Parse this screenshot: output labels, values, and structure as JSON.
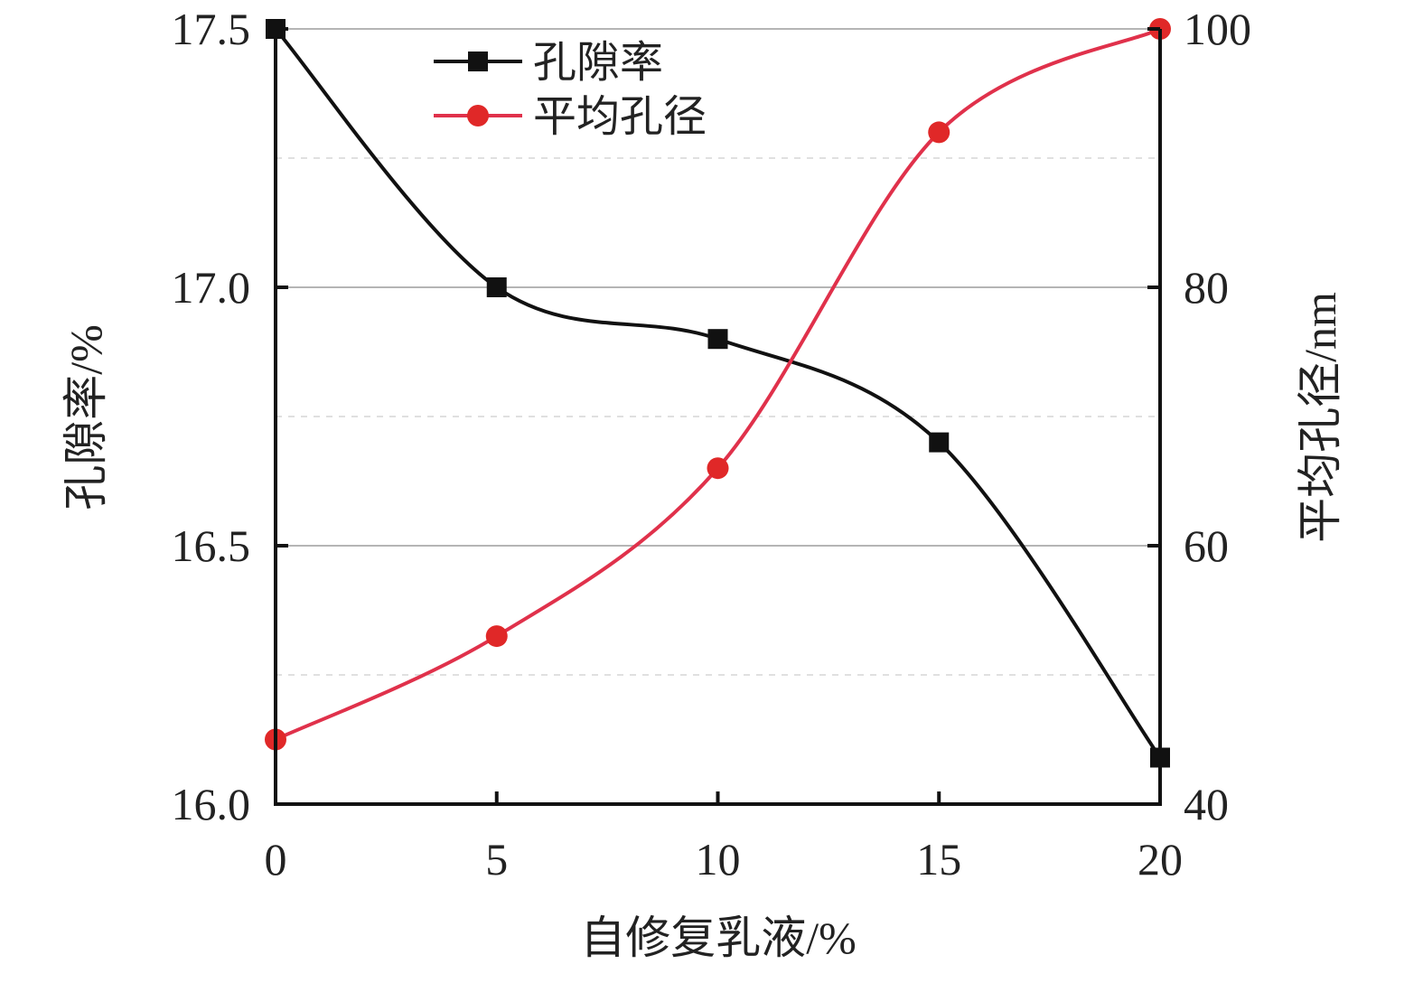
{
  "chart_data": {
    "type": "line",
    "x": [
      0,
      5,
      10,
      15,
      20
    ],
    "xlabel": "自修复乳液/%",
    "ylabel_left": "孔隙率/%",
    "ylabel_right": "平均孔径/nm",
    "xlim": [
      0,
      20
    ],
    "ylim_left": [
      16.0,
      17.5
    ],
    "ylim_right": [
      40,
      100
    ],
    "x_ticks": [
      "0",
      "5",
      "10",
      "15",
      "20"
    ],
    "y_left_ticks": [
      "16.0",
      "16.5",
      "17.0",
      "17.5"
    ],
    "y_right_ticks": [
      "40",
      "60",
      "80",
      "100"
    ],
    "grid": true,
    "legend_position": "top-left",
    "series": [
      {
        "name": "孔隙率",
        "axis": "left",
        "marker": "square",
        "color": "#111111",
        "values": [
          17.5,
          17.0,
          16.9,
          16.7,
          16.09
        ]
      },
      {
        "name": "平均孔径",
        "axis": "right",
        "marker": "circle",
        "color": "#e0314b",
        "marker_color": "#e02828",
        "values": [
          45,
          53,
          66,
          92,
          100
        ]
      }
    ]
  }
}
